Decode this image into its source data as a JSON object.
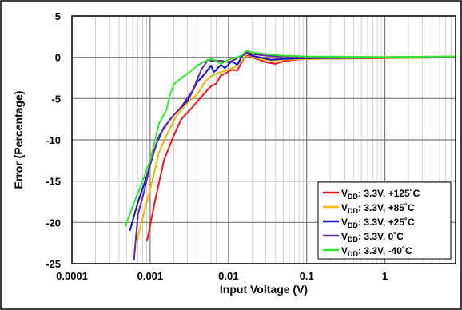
{
  "chart_data": {
    "type": "line",
    "xlabel": "Input Voltage (V)",
    "ylabel": "Error (Percentage)",
    "x_scale": "log",
    "xlim": [
      0.0001,
      8
    ],
    "ylim": [
      -25,
      5
    ],
    "x_ticks": [
      0.0001,
      0.001,
      0.01,
      0.1,
      1
    ],
    "x_tick_labels": [
      "0.0001",
      "0.001",
      "0.01",
      "0.1",
      "1"
    ],
    "y_ticks": [
      5,
      0,
      -5,
      -10,
      -15,
      -20,
      -25
    ],
    "y_tick_labels": [
      "5",
      "0",
      "-5",
      "-10",
      "-15",
      "-20",
      "-25"
    ],
    "grid": true,
    "legend_position": "bottom-right",
    "series": [
      {
        "name_main": "V",
        "name_sub": "DD",
        "name_rest": ":  3.3V, +125˚C",
        "color": "#e8141e",
        "points": [
          [
            0.00091,
            -22.3
          ],
          [
            0.00115,
            -17.5
          ],
          [
            0.0015,
            -12.5
          ],
          [
            0.002,
            -9.5
          ],
          [
            0.0025,
            -7.5
          ],
          [
            0.0035,
            -6.0
          ],
          [
            0.0045,
            -4.8
          ],
          [
            0.006,
            -3.5
          ],
          [
            0.007,
            -3.2
          ],
          [
            0.008,
            -2.2
          ],
          [
            0.009,
            -2.0
          ],
          [
            0.011,
            -1.5
          ],
          [
            0.013,
            -1.6
          ],
          [
            0.015,
            -0.5
          ],
          [
            0.017,
            0.3
          ],
          [
            0.02,
            0.0
          ],
          [
            0.025,
            -0.3
          ],
          [
            0.03,
            -0.6
          ],
          [
            0.04,
            -0.8
          ],
          [
            0.05,
            -0.5
          ],
          [
            0.07,
            -0.3
          ],
          [
            0.1,
            -0.2
          ],
          [
            0.3,
            -0.15
          ],
          [
            1,
            -0.1
          ],
          [
            3,
            -0.05
          ],
          [
            8,
            0.0
          ]
        ]
      },
      {
        "name_main": "V",
        "name_sub": "DD",
        "name_rest": ":  3.3V, +85˚C",
        "color": "#f5b400",
        "points": [
          [
            0.00068,
            -22.2
          ],
          [
            0.0008,
            -19.5
          ],
          [
            0.001,
            -16.0
          ],
          [
            0.0013,
            -11.5
          ],
          [
            0.0017,
            -9.0
          ],
          [
            0.0022,
            -7.0
          ],
          [
            0.003,
            -5.5
          ],
          [
            0.004,
            -4.5
          ],
          [
            0.005,
            -3.0
          ],
          [
            0.006,
            -2.3
          ],
          [
            0.007,
            -2.0
          ],
          [
            0.008,
            -1.8
          ],
          [
            0.01,
            -1.5
          ],
          [
            0.012,
            -1.2
          ],
          [
            0.015,
            -0.4
          ],
          [
            0.017,
            0.4
          ],
          [
            0.02,
            0.1
          ],
          [
            0.025,
            -0.2
          ],
          [
            0.035,
            -0.4
          ],
          [
            0.05,
            -0.3
          ],
          [
            0.1,
            -0.2
          ],
          [
            0.5,
            -0.1
          ],
          [
            8,
            0.0
          ]
        ]
      },
      {
        "name_main": "V",
        "name_sub": "DD",
        "name_rest": ":  3.3V, +25˚C",
        "color": "#1010d0",
        "points": [
          [
            0.00055,
            -21.0
          ],
          [
            0.0007,
            -17.5
          ],
          [
            0.0009,
            -14.5
          ],
          [
            0.0012,
            -10.5
          ],
          [
            0.0015,
            -8.5
          ],
          [
            0.002,
            -7.0
          ],
          [
            0.003,
            -5.3
          ],
          [
            0.004,
            -3.0
          ],
          [
            0.005,
            -2.0
          ],
          [
            0.006,
            -1.0
          ],
          [
            0.0065,
            -1.8
          ],
          [
            0.007,
            -1.5
          ],
          [
            0.008,
            -0.9
          ],
          [
            0.009,
            -1.3
          ],
          [
            0.011,
            -0.5
          ],
          [
            0.013,
            -0.9
          ],
          [
            0.015,
            0.2
          ],
          [
            0.017,
            0.5
          ],
          [
            0.02,
            0.2
          ],
          [
            0.025,
            0.0
          ],
          [
            0.035,
            -0.3
          ],
          [
            0.05,
            -0.2
          ],
          [
            0.1,
            -0.1
          ],
          [
            8,
            0.0
          ]
        ]
      },
      {
        "name_main": "V",
        "name_sub": "DD",
        "name_rest": ":  3.3V, 0˚C",
        "color": "#6a2a9a",
        "points": [
          [
            0.00062,
            -24.6
          ],
          [
            0.0007,
            -19.0
          ],
          [
            0.00085,
            -16.0
          ],
          [
            0.001,
            -13.0
          ],
          [
            0.0013,
            -9.5
          ],
          [
            0.0018,
            -7.5
          ],
          [
            0.0025,
            -6.0
          ],
          [
            0.0035,
            -4.0
          ],
          [
            0.0045,
            -1.5
          ],
          [
            0.0055,
            -0.3
          ],
          [
            0.0065,
            -0.5
          ],
          [
            0.008,
            -0.4
          ],
          [
            0.01,
            -0.6
          ],
          [
            0.012,
            -0.3
          ],
          [
            0.015,
            0.3
          ],
          [
            0.017,
            0.6
          ],
          [
            0.02,
            0.4
          ],
          [
            0.03,
            0.2
          ],
          [
            0.05,
            0.1
          ],
          [
            0.1,
            0.0
          ],
          [
            8,
            0.0
          ]
        ]
      },
      {
        "name_main": "V",
        "name_sub": "DD",
        "name_rest": ":  3.3V, -40˚C",
        "color": "#2ee82e",
        "points": [
          [
            0.00048,
            -20.5
          ],
          [
            0.0006,
            -18.0
          ],
          [
            0.0008,
            -15.0
          ],
          [
            0.001,
            -12.5
          ],
          [
            0.0013,
            -8.0
          ],
          [
            0.0016,
            -6.5
          ],
          [
            0.0018,
            -4.5
          ],
          [
            0.002,
            -3.3
          ],
          [
            0.0025,
            -2.5
          ],
          [
            0.003,
            -2.0
          ],
          [
            0.0035,
            -1.5
          ],
          [
            0.004,
            -1.0
          ],
          [
            0.005,
            -0.5
          ],
          [
            0.006,
            -0.2
          ],
          [
            0.007,
            -0.4
          ],
          [
            0.008,
            -0.8
          ],
          [
            0.01,
            -0.3
          ],
          [
            0.013,
            0.0
          ],
          [
            0.015,
            0.3
          ],
          [
            0.017,
            0.8
          ],
          [
            0.02,
            0.6
          ],
          [
            0.03,
            0.4
          ],
          [
            0.05,
            0.2
          ],
          [
            0.1,
            0.1
          ],
          [
            1,
            0.05
          ],
          [
            8,
            0.1
          ]
        ]
      }
    ]
  }
}
